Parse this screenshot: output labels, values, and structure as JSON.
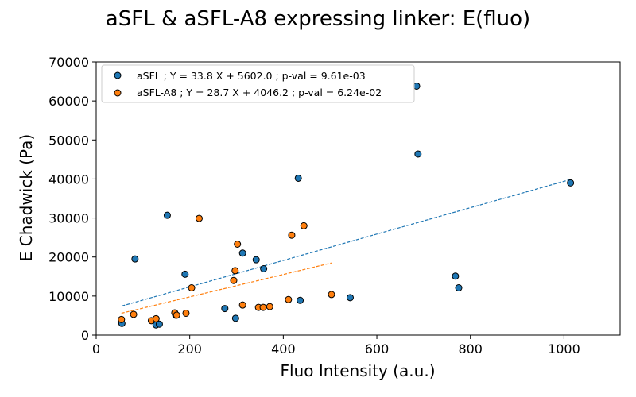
{
  "chart_data": {
    "type": "scatter",
    "title": "aSFL & aSFL-A8 expressing linker: E(fluo)",
    "xlabel": "Fluo Intensity (a.u.)",
    "ylabel": "E Chadwick (Pa)",
    "xlim": [
      0,
      1120
    ],
    "ylim": [
      0,
      70000
    ],
    "x_ticks": [
      0,
      200,
      400,
      600,
      800,
      1000
    ],
    "y_ticks": [
      0,
      10000,
      20000,
      30000,
      40000,
      50000,
      60000,
      70000
    ],
    "x_tick_labels": [
      "0",
      "200",
      "400",
      "600",
      "800",
      "1000"
    ],
    "y_tick_labels": [
      "0",
      "10000",
      "20000",
      "30000",
      "40000",
      "50000",
      "60000",
      "70000"
    ],
    "grid": false,
    "legend_position": "top-left",
    "series": [
      {
        "name": "aSFL ; Y = 33.8 X + 5602.0 ; p-val = 9.61e-03",
        "color": "#1f77b4",
        "points": [
          [
            55,
            3000
          ],
          [
            83,
            19500
          ],
          [
            128,
            2600
          ],
          [
            135,
            2800
          ],
          [
            152,
            30700
          ],
          [
            170,
            5100
          ],
          [
            190,
            15600
          ],
          [
            275,
            6800
          ],
          [
            298,
            4300
          ],
          [
            313,
            21000
          ],
          [
            342,
            19300
          ],
          [
            358,
            17000
          ],
          [
            432,
            40200
          ],
          [
            436,
            8900
          ],
          [
            543,
            9600
          ],
          [
            685,
            63800
          ],
          [
            688,
            46400
          ],
          [
            768,
            15100
          ],
          [
            775,
            12100
          ],
          [
            1014,
            39000
          ]
        ],
        "fit": {
          "slope": 33.8,
          "intercept": 5602.0,
          "x_range": [
            55,
            1014
          ]
        }
      },
      {
        "name": "aSFL-A8 ; Y = 28.7 X + 4046.2 ; p-val = 6.24e-02",
        "color": "#ff7f0e",
        "points": [
          [
            54,
            4000
          ],
          [
            80,
            5300
          ],
          [
            118,
            3700
          ],
          [
            128,
            4200
          ],
          [
            168,
            5700
          ],
          [
            172,
            5100
          ],
          [
            192,
            5600
          ],
          [
            204,
            12100
          ],
          [
            220,
            29900
          ],
          [
            294,
            14000
          ],
          [
            297,
            16500
          ],
          [
            302,
            23300
          ],
          [
            313,
            7700
          ],
          [
            347,
            7100
          ],
          [
            357,
            7100
          ],
          [
            371,
            7300
          ],
          [
            411,
            9100
          ],
          [
            418,
            25600
          ],
          [
            444,
            28000
          ],
          [
            503,
            10400
          ]
        ],
        "fit": {
          "slope": 28.7,
          "intercept": 4046.2,
          "x_range": [
            54,
            503
          ]
        }
      }
    ]
  }
}
